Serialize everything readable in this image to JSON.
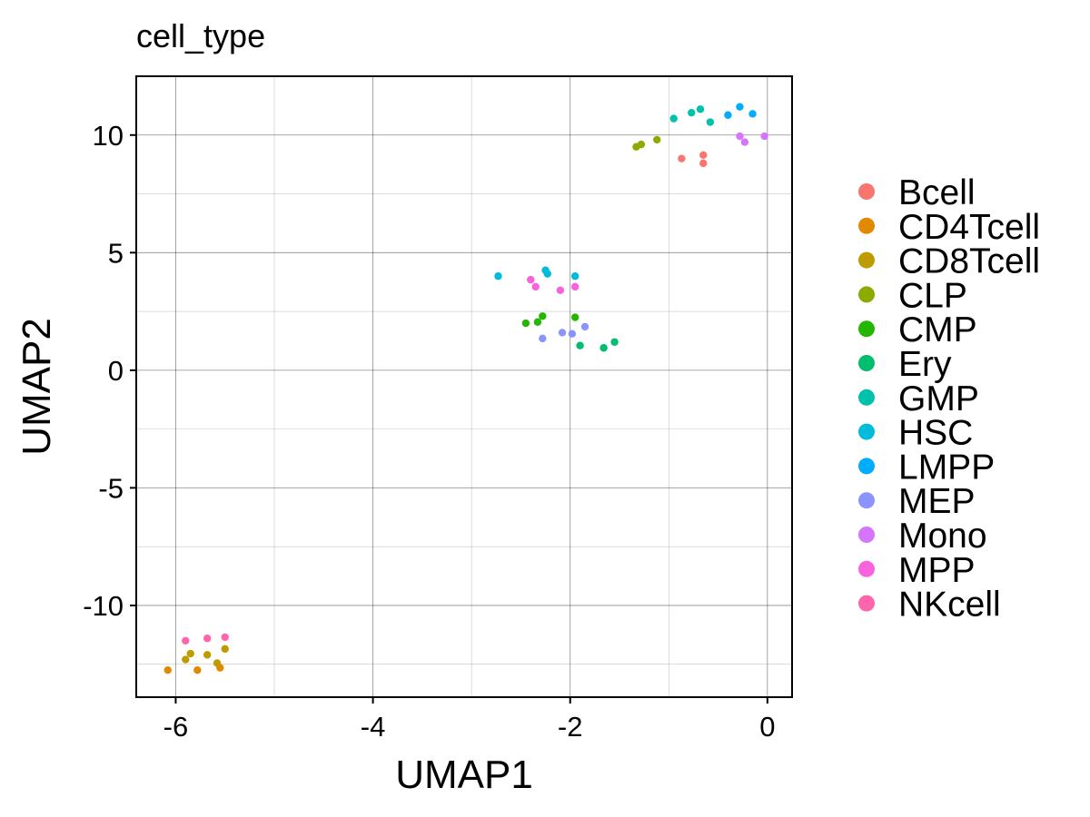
{
  "chart_data": {
    "type": "scatter",
    "title": "cell_type",
    "xlabel": "UMAP1",
    "ylabel": "UMAP2",
    "xlim": [
      -6.4,
      0.25
    ],
    "ylim": [
      -13.9,
      12.5
    ],
    "xticks": [
      -6,
      -4,
      -2,
      0
    ],
    "xtick_labels": [
      "-6",
      "-4",
      "-2",
      "0"
    ],
    "yticks": [
      -10,
      -5,
      0,
      5,
      10
    ],
    "ytick_labels": [
      "-10",
      "-5",
      "0",
      "5",
      "10"
    ],
    "grid": true,
    "legend_position": "right",
    "series": [
      {
        "name": "Bcell",
        "color": "#F8766D",
        "points": [
          [
            -0.87,
            9.0
          ],
          [
            -0.65,
            9.15
          ],
          [
            -0.65,
            8.8
          ]
        ]
      },
      {
        "name": "CD4Tcell",
        "color": "#E18A00",
        "points": [
          [
            -6.08,
            -12.75
          ],
          [
            -5.78,
            -12.75
          ],
          [
            -5.55,
            -12.65
          ]
        ]
      },
      {
        "name": "CD8Tcell",
        "color": "#BE9C00",
        "points": [
          [
            -5.9,
            -12.3
          ],
          [
            -5.85,
            -12.05
          ],
          [
            -5.68,
            -12.1
          ],
          [
            -5.5,
            -11.85
          ],
          [
            -5.58,
            -12.45
          ]
        ]
      },
      {
        "name": "CLP",
        "color": "#8CAB00",
        "points": [
          [
            -1.33,
            9.5
          ],
          [
            -1.28,
            9.6
          ],
          [
            -1.12,
            9.8
          ]
        ]
      },
      {
        "name": "CMP",
        "color": "#24B700",
        "points": [
          [
            -2.45,
            2.0
          ],
          [
            -2.33,
            2.05
          ],
          [
            -2.28,
            2.3
          ],
          [
            -1.95,
            2.25
          ]
        ]
      },
      {
        "name": "Ery",
        "color": "#00BE70",
        "points": [
          [
            -1.9,
            1.05
          ],
          [
            -1.66,
            0.95
          ],
          [
            -1.55,
            1.2
          ]
        ]
      },
      {
        "name": "GMP",
        "color": "#00C1AB",
        "points": [
          [
            -0.95,
            10.7
          ],
          [
            -0.77,
            10.95
          ],
          [
            -0.68,
            11.1
          ],
          [
            -0.58,
            10.55
          ]
        ]
      },
      {
        "name": "HSC",
        "color": "#00BBDA",
        "points": [
          [
            -2.73,
            4.0
          ],
          [
            -2.25,
            4.25
          ],
          [
            -2.23,
            4.1
          ],
          [
            -1.95,
            4.0
          ]
        ]
      },
      {
        "name": "LMPP",
        "color": "#00ACFC",
        "points": [
          [
            -0.4,
            10.85
          ],
          [
            -0.28,
            11.2
          ],
          [
            -0.15,
            10.9
          ]
        ]
      },
      {
        "name": "MEP",
        "color": "#8B93FF",
        "points": [
          [
            -2.28,
            1.35
          ],
          [
            -2.08,
            1.6
          ],
          [
            -1.98,
            1.55
          ],
          [
            -1.85,
            1.85
          ]
        ]
      },
      {
        "name": "Mono",
        "color": "#D575FE",
        "points": [
          [
            -0.28,
            9.95
          ],
          [
            -0.23,
            9.7
          ],
          [
            -0.03,
            9.95
          ]
        ]
      },
      {
        "name": "MPP",
        "color": "#F962DD",
        "points": [
          [
            -2.4,
            3.85
          ],
          [
            -2.35,
            3.55
          ],
          [
            -2.1,
            3.4
          ],
          [
            -1.95,
            3.55
          ]
        ]
      },
      {
        "name": "NKcell",
        "color": "#FF65AC",
        "points": [
          [
            -5.9,
            -11.5
          ],
          [
            -5.68,
            -11.4
          ],
          [
            -5.5,
            -11.35
          ]
        ]
      }
    ]
  }
}
